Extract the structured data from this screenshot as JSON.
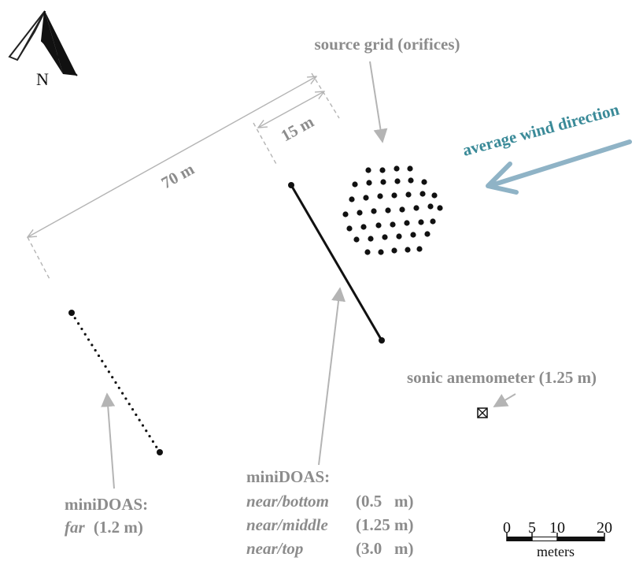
{
  "north": {
    "letter": "N"
  },
  "labels": {
    "source_grid": "source grid (orifices)",
    "wind": "average wind direction",
    "dim_70": "70 m",
    "dim_15": "15 m",
    "sonic": "sonic anemometer (1.25 m)",
    "far_title": "miniDOAS:",
    "far_name": "far",
    "far_height": "(1.2 m)",
    "near_title": "miniDOAS:",
    "near_rows": [
      {
        "name": "near/bottom",
        "height": "(0.5   m)"
      },
      {
        "name": "near/middle",
        "height": "(1.25 m)"
      },
      {
        "name": "near/top",
        "height": "(3.0   m)"
      }
    ]
  },
  "scale_bar": {
    "ticks": [
      "0",
      "5",
      "10",
      "20"
    ],
    "unit": "meters"
  },
  "colors": {
    "label_gray": "#8c8c8c",
    "wind_teal": "#3a8a98",
    "wind_arrow": "#8fb3c6",
    "dim_line": "#b4b4b4",
    "ink": "#111111"
  },
  "icons": {
    "north_arrow": "north-arrow-icon",
    "sonic": "boxed-x-icon"
  }
}
